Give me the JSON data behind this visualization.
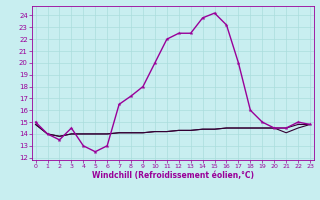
{
  "xlabel": "Windchill (Refroidissement éolien,°C)",
  "bg_color": "#c8eef0",
  "grid_color": "#aadddd",
  "line_color": "#990099",
  "dark_line_color": "#330033",
  "x_ticks": [
    0,
    1,
    2,
    3,
    4,
    5,
    6,
    7,
    8,
    9,
    10,
    11,
    12,
    13,
    14,
    15,
    16,
    17,
    18,
    19,
    20,
    21,
    22,
    23
  ],
  "y_ticks": [
    12,
    13,
    14,
    15,
    16,
    17,
    18,
    19,
    20,
    21,
    22,
    23,
    24
  ],
  "xlim": [
    -0.3,
    23.3
  ],
  "ylim": [
    11.8,
    24.8
  ],
  "series1_x": [
    0,
    1,
    2,
    3,
    4,
    5,
    6,
    7,
    8,
    9,
    10,
    11,
    12,
    13,
    14,
    15,
    16,
    17,
    18,
    19,
    20,
    21,
    22,
    23
  ],
  "series1_y": [
    15,
    14,
    13.5,
    14.5,
    13,
    12.5,
    13,
    16.5,
    17.2,
    18,
    20,
    22,
    22.5,
    22.5,
    23.8,
    24.2,
    23.2,
    20,
    16,
    15,
    14.5,
    14.5,
    15,
    14.8
  ],
  "series2_x": [
    0,
    1,
    2,
    3,
    4,
    5,
    6,
    7,
    8,
    9,
    10,
    11,
    12,
    13,
    14,
    15,
    16,
    17,
    18,
    19,
    20,
    21,
    22,
    23
  ],
  "series2_y": [
    14.8,
    14,
    13.8,
    14.0,
    14.0,
    14.0,
    14.0,
    14.1,
    14.1,
    14.1,
    14.2,
    14.2,
    14.3,
    14.3,
    14.4,
    14.4,
    14.5,
    14.5,
    14.5,
    14.5,
    14.5,
    14.5,
    14.8,
    14.8
  ],
  "series3_x": [
    0,
    1,
    2,
    3,
    4,
    5,
    6,
    7,
    8,
    9,
    10,
    11,
    12,
    13,
    14,
    15,
    16,
    17,
    18,
    19,
    20,
    21,
    22,
    23
  ],
  "series3_y": [
    14.8,
    14,
    13.8,
    14.0,
    14.0,
    14.0,
    14.0,
    14.1,
    14.1,
    14.1,
    14.2,
    14.2,
    14.3,
    14.3,
    14.4,
    14.4,
    14.5,
    14.5,
    14.5,
    14.5,
    14.5,
    14.1,
    14.5,
    14.8
  ]
}
